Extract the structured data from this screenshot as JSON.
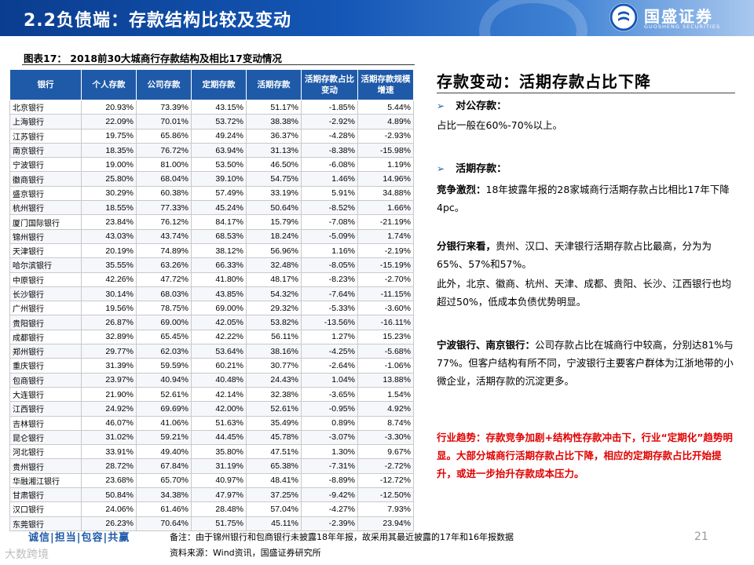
{
  "header": {
    "title": "2.2负债端：存款结构比较及变动",
    "brand": "国盛证券",
    "brand_en": "GUOSHENG SECURITIES"
  },
  "figure": {
    "caption": "图表17： 2018前30大城商行存款结构及相比17变动情况"
  },
  "table": {
    "headers": [
      "银行",
      "个人存款",
      "公司存款",
      "定期存款",
      "活期存款",
      "活期存款占比变动",
      "活期存款规模增速"
    ],
    "rows": [
      [
        "北京银行",
        "20.93%",
        "73.39%",
        "43.15%",
        "51.17%",
        "-1.85%",
        "5.44%"
      ],
      [
        "上海银行",
        "22.09%",
        "70.01%",
        "53.72%",
        "38.38%",
        "-2.92%",
        "4.89%"
      ],
      [
        "江苏银行",
        "19.75%",
        "65.86%",
        "49.24%",
        "36.37%",
        "-4.28%",
        "-2.93%"
      ],
      [
        "南京银行",
        "18.35%",
        "76.72%",
        "63.94%",
        "31.13%",
        "-8.38%",
        "-15.98%"
      ],
      [
        "宁波银行",
        "19.00%",
        "81.00%",
        "53.50%",
        "46.50%",
        "-6.08%",
        "1.19%"
      ],
      [
        "徽商银行",
        "25.80%",
        "68.04%",
        "39.10%",
        "54.75%",
        "1.46%",
        "14.96%"
      ],
      [
        "盛京银行",
        "30.29%",
        "60.38%",
        "57.49%",
        "33.19%",
        "5.91%",
        "34.88%"
      ],
      [
        "杭州银行",
        "18.55%",
        "77.33%",
        "45.24%",
        "50.64%",
        "-8.52%",
        "1.66%"
      ],
      [
        "厦门国际银行",
        "23.84%",
        "76.12%",
        "84.17%",
        "15.79%",
        "-7.08%",
        "-21.19%"
      ],
      [
        "锦州银行",
        "43.03%",
        "43.74%",
        "68.53%",
        "18.24%",
        "-5.09%",
        "1.74%"
      ],
      [
        "天津银行",
        "20.19%",
        "74.89%",
        "38.12%",
        "56.96%",
        "1.16%",
        "-2.19%"
      ],
      [
        "哈尔滨银行",
        "35.55%",
        "63.26%",
        "66.33%",
        "32.48%",
        "-8.05%",
        "-15.19%"
      ],
      [
        "中原银行",
        "42.26%",
        "47.72%",
        "41.80%",
        "48.17%",
        "-8.23%",
        "-2.70%"
      ],
      [
        "长沙银行",
        "30.14%",
        "68.03%",
        "43.85%",
        "54.32%",
        "-7.64%",
        "-11.15%"
      ],
      [
        "广州银行",
        "19.56%",
        "78.75%",
        "69.00%",
        "29.32%",
        "-5.33%",
        "-3.60%"
      ],
      [
        "贵阳银行",
        "26.87%",
        "69.00%",
        "42.05%",
        "53.82%",
        "-13.56%",
        "-16.11%"
      ],
      [
        "成都银行",
        "32.89%",
        "65.45%",
        "42.22%",
        "56.11%",
        "1.27%",
        "15.23%"
      ],
      [
        "郑州银行",
        "29.77%",
        "62.03%",
        "53.64%",
        "38.16%",
        "-4.25%",
        "-5.68%"
      ],
      [
        "重庆银行",
        "31.39%",
        "59.59%",
        "60.21%",
        "30.77%",
        "-2.64%",
        "-1.06%"
      ],
      [
        "包商银行",
        "23.97%",
        "40.94%",
        "40.48%",
        "24.43%",
        "1.04%",
        "13.88%"
      ],
      [
        "大连银行",
        "21.90%",
        "52.61%",
        "42.14%",
        "32.38%",
        "-3.65%",
        "1.54%"
      ],
      [
        "江西银行",
        "24.92%",
        "69.69%",
        "42.00%",
        "52.61%",
        "-0.95%",
        "4.92%"
      ],
      [
        "吉林银行",
        "46.07%",
        "41.06%",
        "51.63%",
        "35.49%",
        "0.89%",
        "8.74%"
      ],
      [
        "昆仑银行",
        "31.02%",
        "59.21%",
        "44.45%",
        "45.78%",
        "-3.07%",
        "-3.30%"
      ],
      [
        "河北银行",
        "33.91%",
        "49.40%",
        "35.80%",
        "47.51%",
        "1.30%",
        "9.67%"
      ],
      [
        "贵州银行",
        "28.72%",
        "67.84%",
        "31.19%",
        "65.38%",
        "-7.31%",
        "-2.72%"
      ],
      [
        "华融湘江银行",
        "23.68%",
        "65.70%",
        "40.97%",
        "48.41%",
        "-8.89%",
        "-12.72%"
      ],
      [
        "甘肃银行",
        "50.84%",
        "34.38%",
        "47.97%",
        "37.25%",
        "-9.42%",
        "-12.50%"
      ],
      [
        "汉口银行",
        "24.06%",
        "61.46%",
        "28.48%",
        "57.04%",
        "-4.27%",
        "7.93%"
      ],
      [
        "东莞银行",
        "26.23%",
        "70.64%",
        "51.75%",
        "45.11%",
        "-2.39%",
        "23.94%"
      ]
    ]
  },
  "panel": {
    "title": "存款变动：活期存款占比下降",
    "sec1_label": "对公存款：",
    "sec1_text": "占比一般在60%-70%以上。",
    "sec2_label": "活期存款：",
    "p1_bold": "竞争激烈：",
    "p1_text": "18年披露年报的28家城商行活期存款占比相比17年下降4pc。",
    "p2_bold": "分银行来看，",
    "p2_text": "贵州、汉口、天津银行活期存款占比最高，分为为65%、57%和57%。",
    "p3_text": "此外，北京、徽商、杭州、天津、成都、贵阳、长沙、江西银行也均超过50%，低成本负债优势明显。",
    "p4_bold": "宁波银行、南京银行：",
    "p4_text": "公司存款占比在城商行中较高，分别达81%与77%。但客户结构有所不同，宁波银行主要客户群体为江浙地带的小微企业，活期存款的沉淀更多。",
    "trend": "行业趋势：存款竞争加剧+结构性存款冲击下，行业“定期化”趋势明显。大部分城商行活期存款占比下降，相应的定期存款占比开始提升，或进一步抬升存款成本压力。"
  },
  "footer": {
    "slogan": "诚信|担当|包容|共赢",
    "note": "备注：由于锦州银行和包商银行未披露18年年报，故采用其最近披露的17年和16年报数据",
    "source": "资料来源：Wind资讯，国盛证券研究所",
    "page": "21",
    "watermark": "大数跨境"
  },
  "colors": {
    "header_blue": "#1456b5",
    "table_header": "#1f5aa8",
    "accent_red": "#e00000"
  }
}
